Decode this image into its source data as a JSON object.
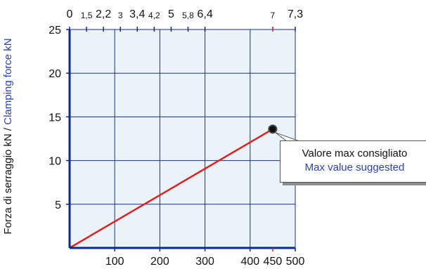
{
  "colors": {
    "axis": "#0b2a8c",
    "grid": "#1b2f86",
    "plot_bg": "#eaf3fa",
    "line": "#e02020",
    "highlight": "#e02020",
    "blue_text": "#2a43b0"
  },
  "chart_data": {
    "type": "line",
    "ylabel_it": "Forza di serraggio kN",
    "ylabel_sep": " / ",
    "ylabel_en": "Clamping force kN",
    "x_ticks": [
      "100",
      "200",
      "300",
      "400",
      "450",
      "500"
    ],
    "x_range": [
      0,
      500
    ],
    "y_ticks": [
      "5",
      "10",
      "15",
      "20",
      "25"
    ],
    "y_range": [
      0,
      25
    ],
    "top_axis_ticks": [
      {
        "label": "0",
        "x": 0,
        "size": "large"
      },
      {
        "label": "1,5",
        "x": 37.5,
        "size": "small"
      },
      {
        "label": "2,2",
        "x": 75,
        "size": "large"
      },
      {
        "label": "3",
        "x": 112.5,
        "size": "small"
      },
      {
        "label": "3,4",
        "x": 150,
        "size": "large"
      },
      {
        "label": "4,2",
        "x": 187.5,
        "size": "small"
      },
      {
        "label": "5",
        "x": 225,
        "size": "large"
      },
      {
        "label": "5,8",
        "x": 262.5,
        "size": "small"
      },
      {
        "label": "6,4",
        "x": 300,
        "size": "large"
      },
      {
        "label": "7",
        "x": 450,
        "size": "small",
        "highlight": true
      },
      {
        "label": "7,3",
        "x": 500,
        "size": "large"
      }
    ],
    "highlight_x": 450,
    "series": [
      {
        "x": [
          0,
          450
        ],
        "y": [
          0,
          13.6
        ]
      }
    ],
    "max_point": {
      "x": 450,
      "y": 13.6
    },
    "annotation": {
      "line1": "Valore max consigliato",
      "line2": "Max value suggested"
    },
    "grid": true
  }
}
